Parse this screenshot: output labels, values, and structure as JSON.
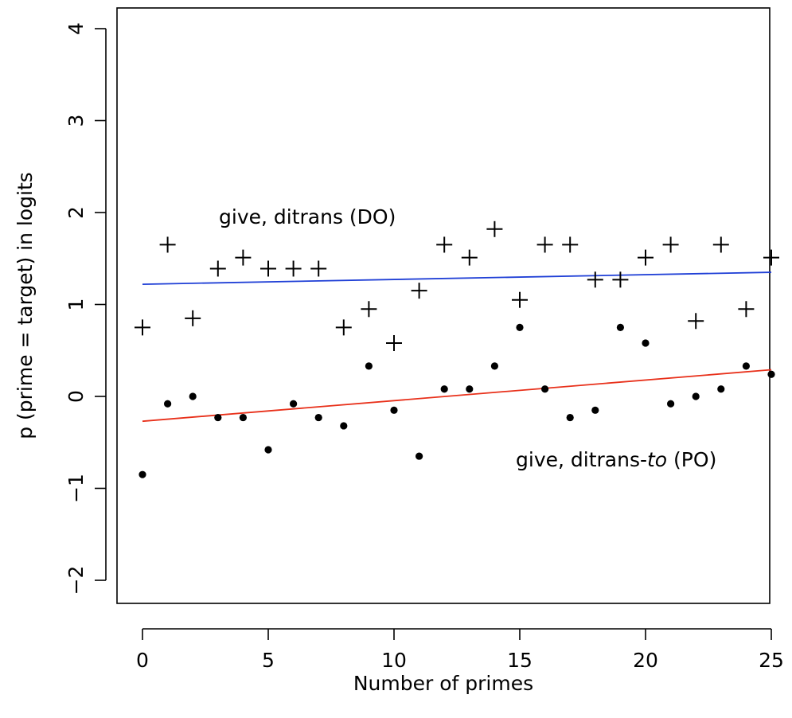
{
  "chart_data": {
    "type": "scatter",
    "title": "",
    "xlabel": "Number of primes",
    "ylabel": "p (prime = target)  in logits",
    "xlim": [
      -1,
      26
    ],
    "ylim": [
      -2.25,
      4.25
    ],
    "xticks": [
      0,
      5,
      10,
      15,
      20,
      25
    ],
    "yticks": [
      -2,
      -1,
      0,
      1,
      2,
      3,
      4
    ],
    "xtick_labels": [
      "0",
      "5",
      "10",
      "15",
      "20",
      "25"
    ],
    "ytick_labels": [
      "−2",
      "−1",
      "0",
      "1",
      "2",
      "3",
      "4"
    ],
    "grid": false,
    "series": [
      {
        "name": "give, ditrans (DO)",
        "marker": "plus",
        "color": "#000000",
        "x": [
          0,
          1,
          2,
          3,
          4,
          5,
          6,
          7,
          8,
          9,
          10,
          11,
          12,
          13,
          14,
          15,
          16,
          17,
          18,
          19,
          20,
          21,
          22,
          23,
          24,
          25
        ],
        "y": [
          0.75,
          1.65,
          0.85,
          1.39,
          1.51,
          1.39,
          1.39,
          1.39,
          0.75,
          0.95,
          0.58,
          1.15,
          1.65,
          1.51,
          1.82,
          1.05,
          1.65,
          1.65,
          1.27,
          1.27,
          1.51,
          1.65,
          0.82,
          1.65,
          0.95,
          1.51
        ],
        "fit": {
          "color": "#1f3fd6",
          "x": [
            0,
            25
          ],
          "y": [
            1.22,
            1.35
          ]
        }
      },
      {
        "name_parts": [
          "give, ditrans-",
          "to",
          " (PO)"
        ],
        "marker": "dot",
        "color": "#000000",
        "x": [
          0,
          1,
          2,
          3,
          4,
          5,
          6,
          7,
          8,
          9,
          10,
          11,
          12,
          13,
          14,
          15,
          16,
          17,
          18,
          19,
          20,
          21,
          22,
          23,
          24,
          25
        ],
        "y": [
          -0.85,
          -0.08,
          0.0,
          -0.23,
          -0.23,
          -0.58,
          -0.08,
          -0.23,
          -0.32,
          0.33,
          -0.15,
          -0.65,
          0.08,
          0.08,
          0.33,
          0.75,
          0.08,
          -0.23,
          -0.15,
          0.75,
          0.58,
          -0.08,
          0.0,
          0.08,
          0.33,
          0.24
        ],
        "fit": {
          "color": "#e8301a",
          "x": [
            0,
            25
          ],
          "y": [
            -0.27,
            0.29
          ]
        }
      }
    ]
  }
}
